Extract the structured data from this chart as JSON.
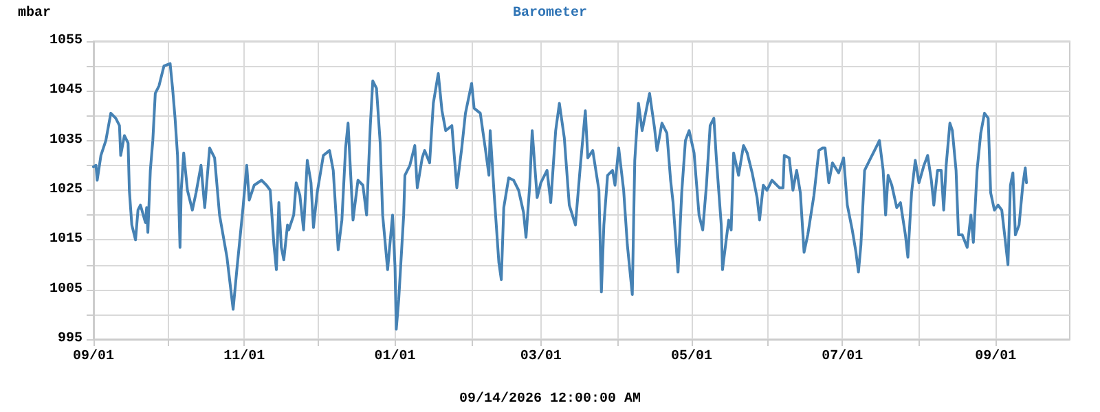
{
  "chart_data": {
    "type": "line",
    "title": "Barometer",
    "ylabel": "mbar",
    "annotations": [
      "09/14/2026 12:00:00 AM"
    ],
    "xlim": [
      "2025-09-01",
      "2026-10-01"
    ],
    "xticks": [
      {
        "value": "2025-09-01",
        "label": "09/01"
      },
      {
        "value": "2025-10-01",
        "label": null
      },
      {
        "value": "2025-11-01",
        "label": "11/01"
      },
      {
        "value": "2025-12-01",
        "label": null
      },
      {
        "value": "2026-01-01",
        "label": "01/01"
      },
      {
        "value": "2026-02-01",
        "label": null
      },
      {
        "value": "2026-03-01",
        "label": "03/01"
      },
      {
        "value": "2026-04-01",
        "label": null
      },
      {
        "value": "2026-05-01",
        "label": "05/01"
      },
      {
        "value": "2026-06-01",
        "label": null
      },
      {
        "value": "2026-07-01",
        "label": "07/01"
      },
      {
        "value": "2026-08-01",
        "label": null
      },
      {
        "value": "2026-09-01",
        "label": "09/01"
      }
    ],
    "ylim": [
      995,
      1055
    ],
    "yticks": [
      995,
      {
        "value": 1000,
        "label": null
      },
      1005,
      {
        "value": 1010,
        "label": null
      },
      1015,
      {
        "value": 1020,
        "label": null
      },
      1025,
      {
        "value": 1030,
        "label": null
      },
      1035,
      {
        "value": 1040,
        "label": null
      },
      1045,
      {
        "value": 1050,
        "label": null
      },
      1055
    ],
    "grid": true,
    "marker": "none",
    "line_style": "solid",
    "series": [
      {
        "color": "#4682b4",
        "x": [
          "2025-09-01",
          "2025-09-02",
          "2025-09-02T12:00",
          "2025-09-04",
          "2025-09-06",
          "2025-09-08",
          "2025-09-10",
          "2025-09-11T12:00",
          "2025-09-12",
          "2025-09-13T12:00",
          "2025-09-15",
          "2025-09-15T12:00",
          "2025-09-16T12:00",
          "2025-09-18",
          "2025-09-19",
          "2025-09-20",
          "2025-09-22",
          "2025-09-22T12:00",
          "2025-09-23",
          "2025-09-24",
          "2025-09-25",
          "2025-09-26",
          "2025-09-27T12:00",
          "2025-09-29T12:00",
          "2025-10-02",
          "2025-10-03",
          "2025-10-04",
          "2025-10-05",
          "2025-10-06",
          "2025-10-06T12:00",
          "2025-10-07T12:00",
          "2025-10-09",
          "2025-10-11",
          "2025-10-12T12:00",
          "2025-10-14T12:00",
          "2025-10-16",
          "2025-10-18",
          "2025-10-20",
          "2025-10-22",
          "2025-10-25",
          "2025-10-27T12:00",
          "2025-10-29",
          "2025-10-31T12:00",
          "2025-11-02",
          "2025-11-03",
          "2025-11-05",
          "2025-11-08",
          "2025-11-10",
          "2025-11-11T12:00",
          "2025-11-13",
          "2025-11-14",
          "2025-11-15",
          "2025-11-16",
          "2025-11-17",
          "2025-11-18T12:00",
          "2025-11-19",
          "2025-11-21",
          "2025-11-22",
          "2025-11-23T12:00",
          "2025-11-25",
          "2025-11-26T12:00",
          "2025-11-28",
          "2025-11-29",
          "2025-11-30T12:00",
          "2025-12-03",
          "2025-12-05T12:00",
          "2025-12-07",
          "2025-12-09",
          "2025-12-10T12:00",
          "2025-12-12",
          "2025-12-13",
          "2025-12-15",
          "2025-12-17",
          "2025-12-19",
          "2025-12-20T12:00",
          "2025-12-22",
          "2025-12-23",
          "2025-12-24T12:00",
          "2025-12-26",
          "2025-12-27",
          "2025-12-29",
          "2025-12-31",
          "2026-01-01",
          "2026-01-01T12:00",
          "2026-01-02T12:00",
          "2026-01-04T12:00",
          "2026-01-05",
          "2026-01-07",
          "2026-01-09",
          "2026-01-10",
          "2026-01-12",
          "2026-01-13",
          "2026-01-15",
          "2026-01-16T12:00",
          "2026-01-18T12:00",
          "2026-01-20",
          "2026-01-21T12:00",
          "2026-01-24",
          "2026-01-26",
          "2026-01-28",
          "2026-01-29T12:00",
          "2026-02-01",
          "2026-02-02",
          "2026-02-04T12:00",
          "2026-02-06T12:00",
          "2026-02-08",
          "2026-02-08T12:00",
          "2026-02-10",
          "2026-02-12",
          "2026-02-13",
          "2026-02-14",
          "2026-02-16",
          "2026-02-18",
          "2026-02-20",
          "2026-02-22",
          "2026-02-23",
          "2026-02-24T12:00",
          "2026-02-25T12:00",
          "2026-02-27T12:00",
          "2026-03-01",
          "2026-03-03T12:00",
          "2026-03-05",
          "2026-03-07",
          "2026-03-08T12:00",
          "2026-03-10T12:00",
          "2026-03-12T12:00",
          "2026-03-15",
          "2026-03-17",
          "2026-03-19",
          "2026-03-20",
          "2026-03-22",
          "2026-03-24T12:00",
          "2026-03-25T12:00",
          "2026-03-26T12:00",
          "2026-03-28",
          "2026-03-30",
          "2026-03-31",
          "2026-04-01T12:00",
          "2026-04-03T12:00",
          "2026-04-05",
          "2026-04-07",
          "2026-04-08",
          "2026-04-09T12:00",
          "2026-04-11",
          "2026-04-14",
          "2026-04-16",
          "2026-04-17",
          "2026-04-19",
          "2026-04-21",
          "2026-04-22T12:00",
          "2026-04-23T12:00",
          "2026-04-25T12:00",
          "2026-04-27",
          "2026-04-28T12:00",
          "2026-04-30",
          "2026-05-02",
          "2026-05-04",
          "2026-05-05T12:00",
          "2026-05-07",
          "2026-05-08T12:00",
          "2026-05-10",
          "2026-05-11",
          "2026-05-13",
          "2026-05-13T12:00",
          "2026-05-16",
          "2026-05-17",
          "2026-05-18",
          "2026-05-20",
          "2026-05-22",
          "2026-05-23T12:00",
          "2026-05-25T12:00",
          "2026-05-27T12:00",
          "2026-05-28T12:00",
          "2026-05-30",
          "2026-05-31T12:00",
          "2026-06-02T12:00",
          "2026-06-05T12:00",
          "2026-06-07",
          "2026-06-07T12:00",
          "2026-06-09T12:00",
          "2026-06-11",
          "2026-06-12T12:00",
          "2026-06-14",
          "2026-06-15T12:00",
          "2026-06-17",
          "2026-06-19T12:00",
          "2026-06-21T12:00",
          "2026-06-23",
          "2026-06-24",
          "2026-06-25T12:00",
          "2026-06-27",
          "2026-06-29T12:00",
          "2026-07-01T12:00",
          "2026-07-03",
          "2026-07-05",
          "2026-07-06T12:00",
          "2026-07-07T12:00",
          "2026-07-08T12:00",
          "2026-07-10",
          "2026-07-12T12:00",
          "2026-07-14T12:00",
          "2026-07-16",
          "2026-07-17T12:00",
          "2026-07-18T12:00",
          "2026-07-19T12:00",
          "2026-07-21",
          "2026-07-23",
          "2026-07-24T12:00",
          "2026-07-26T12:00",
          "2026-07-27T12:00",
          "2026-07-29",
          "2026-07-30T12:00",
          "2026-08-01",
          "2026-08-03",
          "2026-08-04T12:00",
          "2026-08-06",
          "2026-08-07",
          "2026-08-08T12:00",
          "2026-08-10",
          "2026-08-11",
          "2026-08-12",
          "2026-08-13T12:00",
          "2026-08-14T12:00",
          "2026-08-16",
          "2026-08-17",
          "2026-08-18T12:00",
          "2026-08-20T12:00",
          "2026-08-22",
          "2026-08-23",
          "2026-08-24T12:00",
          "2026-08-26",
          "2026-08-27T12:00",
          "2026-08-29",
          "2026-08-30",
          "2026-08-31T12:00",
          "2026-09-02",
          "2026-09-03T12:00",
          "2026-09-05",
          "2026-09-06",
          "2026-09-07",
          "2026-09-08",
          "2026-09-09",
          "2026-09-10T12:00",
          "2026-09-12",
          "2026-09-13",
          "2026-09-13T12:00"
        ],
        "values": [
          1029.7,
          1030,
          1027,
          1032,
          1035,
          1040.5,
          1039.5,
          1038,
          1032,
          1036,
          1034.5,
          1025,
          1018,
          1015,
          1021,
          1022,
          1018.5,
          1021.5,
          1016.5,
          1029,
          1035,
          1044.5,
          1046,
          1050,
          1050.5,
          1045.5,
          1039.5,
          1032,
          1013.5,
          1025,
          1032.5,
          1025,
          1021,
          1024.5,
          1030,
          1021.5,
          1033.5,
          1031.5,
          1020,
          1011.5,
          1001,
          1009,
          1021.5,
          1030,
          1023,
          1026,
          1027,
          1026,
          1025,
          1014,
          1009,
          1022.5,
          1013.5,
          1011,
          1018,
          1017,
          1020,
          1026.5,
          1024,
          1017,
          1031,
          1026.5,
          1017.5,
          1024.5,
          1032,
          1033,
          1029,
          1013,
          1019,
          1033.5,
          1038.5,
          1019,
          1027,
          1026,
          1020,
          1038,
          1047,
          1045.5,
          1034.5,
          1020,
          1009,
          1020,
          1009.5,
          997,
          1003,
          1020,
          1028,
          1030,
          1034,
          1025.5,
          1031.5,
          1033,
          1030.5,
          1042.5,
          1048.5,
          1041,
          1037,
          1038,
          1025.5,
          1033.5,
          1040.5,
          1046.5,
          1041.5,
          1040.5,
          1033.5,
          1028,
          1037,
          1025,
          1010.5,
          1007,
          1021.5,
          1027.5,
          1027,
          1025,
          1020.5,
          1015.5,
          1026,
          1037,
          1023.5,
          1026.5,
          1029,
          1022.5,
          1037,
          1042.5,
          1035.5,
          1022,
          1018,
          1030,
          1041,
          1031.5,
          1033,
          1025,
          1004.5,
          1018,
          1028,
          1029,
          1026,
          1033.5,
          1025,
          1014,
          1004,
          1031,
          1042.5,
          1037,
          1044.5,
          1037.5,
          1033,
          1038.5,
          1036.5,
          1027,
          1022.5,
          1008.5,
          1024.5,
          1035,
          1037,
          1032.5,
          1020,
          1017,
          1026,
          1038,
          1039.5,
          1031.5,
          1018,
          1009,
          1019,
          1017,
          1032.5,
          1028,
          1034,
          1032.5,
          1028.5,
          1023.5,
          1019,
          1026,
          1025,
          1027,
          1025.5,
          1025.5,
          1032,
          1031.5,
          1025,
          1029,
          1024.5,
          1012.5,
          1016,
          1024,
          1033,
          1033.5,
          1033.5,
          1026.5,
          1030.5,
          1028.5,
          1031.5,
          1022,
          1017,
          1012.5,
          1008.5,
          1014,
          1029,
          1031.5,
          1033.5,
          1035,
          1029,
          1020,
          1028,
          1026,
          1021.5,
          1022.5,
          1016,
          1011.5,
          1024.5,
          1031,
          1026.5,
          1030,
          1032,
          1027,
          1022,
          1029,
          1029,
          1021,
          1030,
          1038.5,
          1037,
          1029,
          1016,
          1016,
          1013.5,
          1020,
          1014.5,
          1029,
          1036.5,
          1040.5,
          1039.5,
          1024.5,
          1021,
          1022,
          1021,
          1014.5,
          1010,
          1026,
          1028.5,
          1016,
          1018,
          1026,
          1029.5,
          1026.5
        ]
      }
    ]
  }
}
